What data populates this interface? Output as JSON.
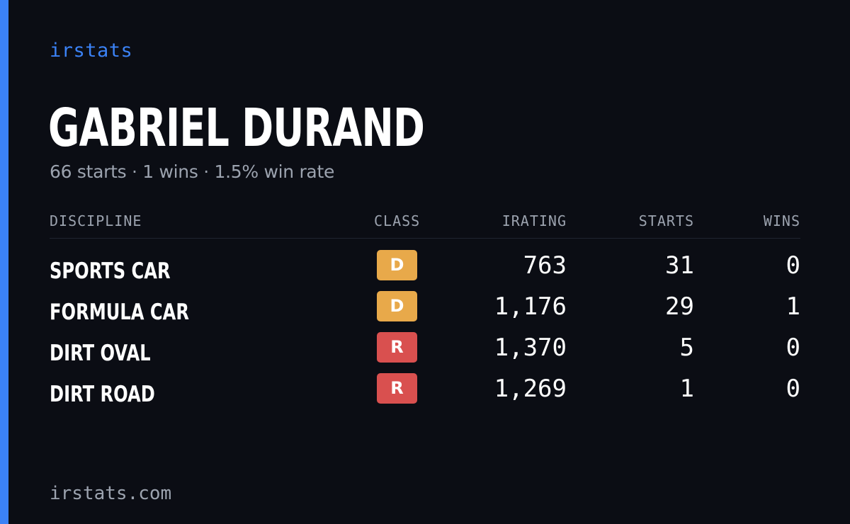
{
  "brand": "irstats",
  "player": {
    "name": "GABRIEL DURAND",
    "summary": "66 starts · 1 wins · 1.5% win rate"
  },
  "table": {
    "headers": {
      "discipline": "DISCIPLINE",
      "class": "CLASS",
      "irating": "IRATING",
      "starts": "STARTS",
      "wins": "WINS"
    },
    "rows": [
      {
        "discipline": "SPORTS CAR",
        "class": "D",
        "class_color": "#e8a94a",
        "irating": "763",
        "starts": "31",
        "wins": "0"
      },
      {
        "discipline": "FORMULA CAR",
        "class": "D",
        "class_color": "#e8a94a",
        "irating": "1,176",
        "starts": "29",
        "wins": "1"
      },
      {
        "discipline": "DIRT OVAL",
        "class": "R",
        "class_color": "#d9504f",
        "irating": "1,370",
        "starts": "5",
        "wins": "0"
      },
      {
        "discipline": "DIRT ROAD",
        "class": "R",
        "class_color": "#d9504f",
        "irating": "1,269",
        "starts": "1",
        "wins": "0"
      }
    ]
  },
  "footer": "irstats.com",
  "colors": {
    "background": "#0b0d14",
    "accent": "#3b82f6",
    "muted": "#9ca3af",
    "class_d": "#e8a94a",
    "class_r": "#d9504f"
  }
}
